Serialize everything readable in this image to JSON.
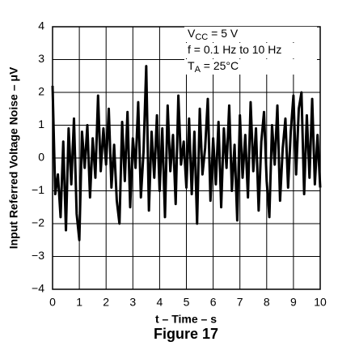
{
  "chart_data": {
    "type": "line",
    "y_label": "Input Referred Voltage Noise – μV",
    "x_label": "t – Time – s",
    "caption": "Figure 17",
    "annotations": [
      {
        "main": "V",
        "sub": "CC",
        "tail": " = 5 V"
      },
      {
        "main": "f = 0.1 Hz to 10 Hz"
      },
      {
        "main": "T",
        "sub": "A",
        "tail": " = 25°C"
      }
    ],
    "x": [
      0,
      0.1,
      0.2,
      0.3,
      0.4,
      0.5,
      0.6,
      0.7,
      0.8,
      0.9,
      1,
      1.1,
      1.2,
      1.3,
      1.4,
      1.5,
      1.6,
      1.7,
      1.8,
      1.9,
      2,
      2.1,
      2.2,
      2.3,
      2.4,
      2.5,
      2.6,
      2.7,
      2.8,
      2.9,
      3,
      3.1,
      3.2,
      3.3,
      3.4,
      3.5,
      3.6,
      3.7,
      3.8,
      3.9,
      4,
      4.1,
      4.2,
      4.3,
      4.4,
      4.5,
      4.6,
      4.7,
      4.8,
      4.9,
      5,
      5.1,
      5.2,
      5.3,
      5.4,
      5.5,
      5.6,
      5.7,
      5.8,
      5.9,
      6,
      6.1,
      6.2,
      6.3,
      6.4,
      6.5,
      6.6,
      6.7,
      6.8,
      6.9,
      7,
      7.1,
      7.2,
      7.3,
      7.4,
      7.5,
      7.6,
      7.7,
      7.8,
      7.9,
      8,
      8.1,
      8.2,
      8.3,
      8.4,
      8.5,
      8.6,
      8.7,
      8.8,
      8.9,
      9,
      9.1,
      9.2,
      9.3,
      9.4,
      9.5,
      9.6,
      9.7,
      9.8,
      9.9,
      10
    ],
    "series": [
      {
        "color": "#000000",
        "values": [
          2.2,
          -1.1,
          -0.5,
          -1.8,
          0.5,
          -2.2,
          0.9,
          -0.8,
          1.2,
          -1.7,
          -2.5,
          0.8,
          -0.3,
          1.0,
          -1.2,
          0.6,
          -0.6,
          1.9,
          -0.4,
          0.9,
          -0.2,
          1.5,
          -0.9,
          0.4,
          -1.3,
          -2.0,
          1.1,
          -0.7,
          1.4,
          -1.5,
          0.6,
          -0.3,
          1.7,
          -1.2,
          0.2,
          2.8,
          -1.6,
          0.8,
          -0.6,
          1.3,
          -1.0,
          0.9,
          -1.8,
          1.6,
          -0.4,
          0.7,
          -1.4,
          1.9,
          -0.2,
          0.5,
          -0.9,
          1.2,
          -1.1,
          0.8,
          -2.0,
          1.5,
          -0.5,
          0.3,
          1.8,
          -1.3,
          0.6,
          -0.8,
          1.1,
          -1.5,
          0.9,
          -0.3,
          1.6,
          -1.0,
          0.4,
          -1.9,
          1.3,
          -0.6,
          0.7,
          -1.2,
          1.7,
          -0.4,
          0.9,
          -1.6,
          0.5,
          1.4,
          -0.7,
          -1.8,
          1.0,
          -0.2,
          1.6,
          -1.3,
          0.3,
          1.2,
          -0.9,
          0.8,
          1.9,
          -0.5,
          1.5,
          2.0,
          -1.1,
          1.3,
          -0.6,
          1.8,
          -0.8,
          0.7,
          -0.9
        ]
      }
    ],
    "xlim": [
      0,
      10
    ],
    "ylim": [
      -4,
      4
    ],
    "xticks": [
      0,
      1,
      2,
      3,
      4,
      5,
      6,
      7,
      8,
      9,
      10
    ],
    "yticks": [
      {
        "value": -4,
        "label": "−4"
      },
      {
        "value": -3,
        "label": "−3"
      },
      {
        "value": -2,
        "label": "−2"
      },
      {
        "value": -1,
        "label": "−1"
      },
      0,
      1,
      2,
      3,
      4
    ],
    "grid": true
  }
}
